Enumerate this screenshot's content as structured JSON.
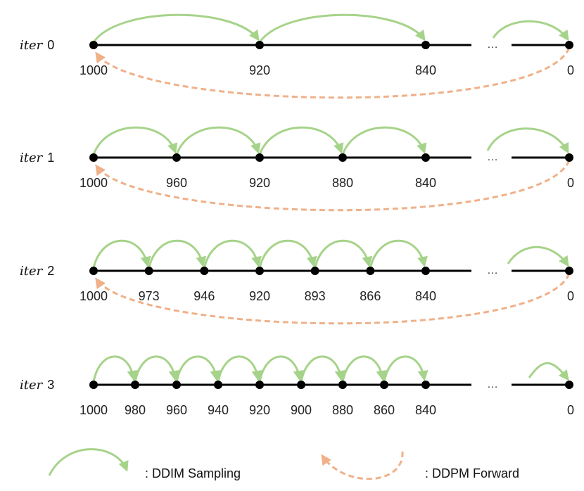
{
  "colors": {
    "sampling": "#a6d38a",
    "forward": "#f0b088",
    "axis": "#000000"
  },
  "ellipsis": "…",
  "iterations": [
    {
      "prefix": "iter",
      "num": "0",
      "ticks": [
        "1000",
        "920",
        "840",
        "0"
      ]
    },
    {
      "prefix": "iter",
      "num": "1",
      "ticks": [
        "1000",
        "960",
        "920",
        "880",
        "840",
        "0"
      ]
    },
    {
      "prefix": "iter",
      "num": "2",
      "ticks": [
        "1000",
        "973",
        "946",
        "920",
        "893",
        "866",
        "840",
        "0"
      ]
    },
    {
      "prefix": "iter",
      "num": "3",
      "ticks": [
        "1000",
        "980",
        "960",
        "940",
        "920",
        "900",
        "880",
        "860",
        "840",
        "0"
      ]
    }
  ],
  "legend": {
    "sampling_label": ": DDIM Sampling",
    "forward_label": ": DDPM Forward"
  }
}
